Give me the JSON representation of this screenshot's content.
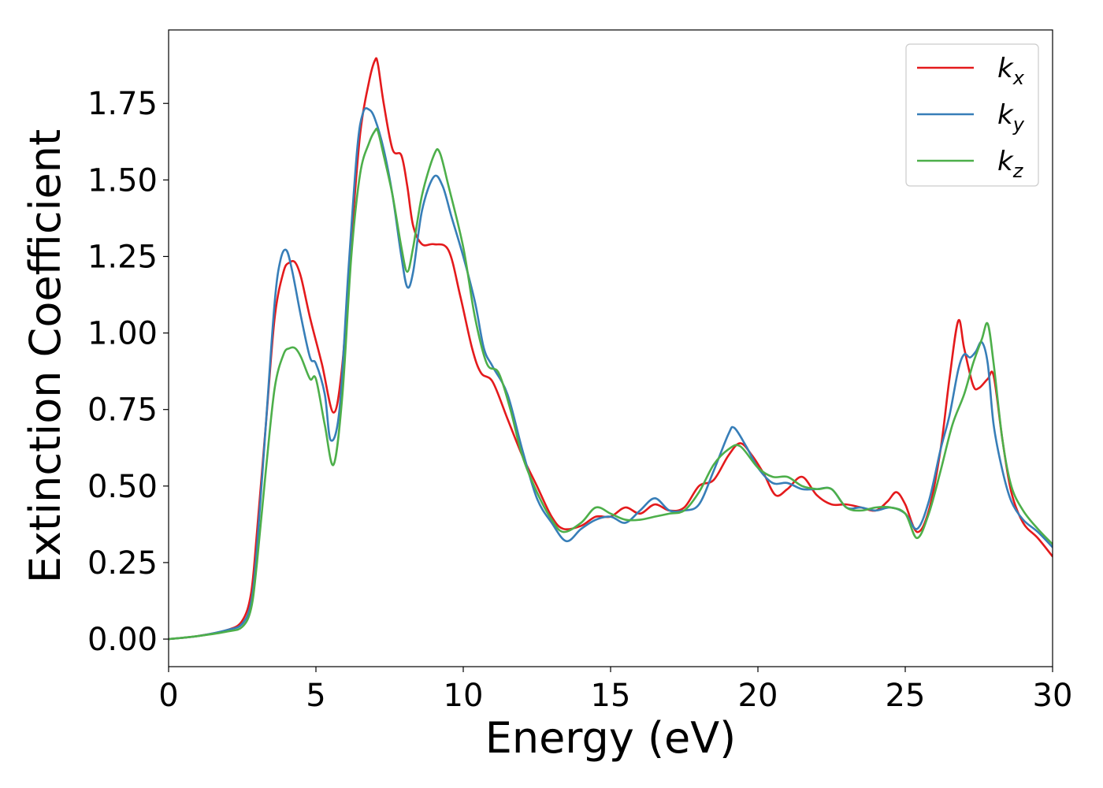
{
  "chart_data": {
    "type": "line",
    "xlabel": "Energy (eV)",
    "ylabel": "Extinction Coefficient",
    "xlim": [
      0,
      30
    ],
    "ylim": [
      -0.09,
      1.99
    ],
    "xticks": [
      0,
      5,
      10,
      15,
      20,
      25,
      30
    ],
    "yticks": [
      0.0,
      0.25,
      0.5,
      0.75,
      1.0,
      1.25,
      1.5,
      1.75
    ],
    "xtick_labels": [
      "0",
      "5",
      "10",
      "15",
      "20",
      "25",
      "30"
    ],
    "ytick_labels": [
      "0.00",
      "0.25",
      "0.50",
      "0.75",
      "1.00",
      "1.25",
      "1.50",
      "1.75"
    ],
    "grid": false,
    "legend_position": "top-right",
    "series": [
      {
        "name": "k_x",
        "label_base": "k",
        "label_sub": "x",
        "color": "#e41a1c",
        "x": [
          0,
          1,
          2,
          2.5,
          2.8,
          3.0,
          3.3,
          3.6,
          3.9,
          4.1,
          4.3,
          4.5,
          4.8,
          5.2,
          5.6,
          5.9,
          6.2,
          6.5,
          6.8,
          7.0,
          7.1,
          7.3,
          7.6,
          7.9,
          8.1,
          8.3,
          8.6,
          9.0,
          9.5,
          9.9,
          10.3,
          10.6,
          11.0,
          11.5,
          12.0,
          12.5,
          13.0,
          13.4,
          14.0,
          14.5,
          15.0,
          15.5,
          16.0,
          16.5,
          17.0,
          17.5,
          18.0,
          18.5,
          19.0,
          19.4,
          19.8,
          20.2,
          20.6,
          21.0,
          21.5,
          22.0,
          22.5,
          23.0,
          23.5,
          24.0,
          24.4,
          24.7,
          25.0,
          25.4,
          25.8,
          26.2,
          26.5,
          26.8,
          27.0,
          27.3,
          27.5,
          27.8,
          28.0,
          28.3,
          28.6,
          29.0,
          29.5,
          30.0
        ],
        "y": [
          0.0,
          0.01,
          0.03,
          0.06,
          0.15,
          0.35,
          0.7,
          1.05,
          1.2,
          1.23,
          1.23,
          1.18,
          1.05,
          0.9,
          0.74,
          0.9,
          1.3,
          1.65,
          1.82,
          1.89,
          1.88,
          1.75,
          1.6,
          1.58,
          1.48,
          1.35,
          1.29,
          1.29,
          1.27,
          1.12,
          0.95,
          0.87,
          0.84,
          0.72,
          0.6,
          0.5,
          0.4,
          0.36,
          0.37,
          0.4,
          0.4,
          0.43,
          0.41,
          0.44,
          0.42,
          0.43,
          0.5,
          0.52,
          0.6,
          0.64,
          0.6,
          0.54,
          0.47,
          0.49,
          0.53,
          0.47,
          0.44,
          0.44,
          0.43,
          0.42,
          0.45,
          0.48,
          0.44,
          0.35,
          0.42,
          0.62,
          0.85,
          1.04,
          0.95,
          0.83,
          0.82,
          0.85,
          0.86,
          0.65,
          0.48,
          0.38,
          0.33,
          0.27
        ]
      },
      {
        "name": "k_y",
        "label_base": "k",
        "label_sub": "y",
        "color": "#377eb8",
        "x": [
          0,
          1,
          2,
          2.5,
          2.8,
          3.0,
          3.3,
          3.6,
          3.8,
          4.0,
          4.2,
          4.5,
          4.8,
          5.0,
          5.3,
          5.5,
          5.8,
          6.1,
          6.4,
          6.6,
          6.8,
          7.0,
          7.3,
          7.6,
          7.9,
          8.1,
          8.3,
          8.6,
          9.0,
          9.3,
          9.6,
          10.0,
          10.4,
          10.7,
          11.0,
          11.5,
          12.0,
          12.5,
          13.0,
          13.5,
          14.0,
          14.5,
          15.0,
          15.5,
          16.0,
          16.5,
          17.0,
          17.5,
          18.0,
          18.5,
          19.0,
          19.2,
          19.6,
          20.0,
          20.5,
          21.0,
          21.5,
          22.0,
          22.5,
          23.0,
          23.5,
          24.0,
          24.5,
          25.0,
          25.4,
          25.8,
          26.2,
          26.5,
          26.8,
          27.0,
          27.2,
          27.4,
          27.6,
          27.8,
          28.0,
          28.3,
          28.6,
          29.0,
          29.5,
          30.0
        ],
        "y": [
          0.0,
          0.01,
          0.03,
          0.05,
          0.12,
          0.3,
          0.7,
          1.1,
          1.24,
          1.27,
          1.2,
          1.05,
          0.92,
          0.9,
          0.8,
          0.65,
          0.75,
          1.2,
          1.6,
          1.72,
          1.73,
          1.7,
          1.6,
          1.45,
          1.25,
          1.15,
          1.2,
          1.4,
          1.51,
          1.48,
          1.38,
          1.25,
          1.1,
          0.95,
          0.89,
          0.8,
          0.62,
          0.46,
          0.38,
          0.32,
          0.36,
          0.39,
          0.4,
          0.38,
          0.42,
          0.46,
          0.42,
          0.42,
          0.44,
          0.55,
          0.67,
          0.69,
          0.63,
          0.56,
          0.51,
          0.51,
          0.49,
          0.49,
          0.49,
          0.43,
          0.43,
          0.42,
          0.43,
          0.41,
          0.36,
          0.45,
          0.62,
          0.73,
          0.88,
          0.93,
          0.92,
          0.94,
          0.97,
          0.9,
          0.7,
          0.55,
          0.45,
          0.39,
          0.35,
          0.3
        ]
      },
      {
        "name": "k_z",
        "label_base": "k",
        "label_sub": "z",
        "color": "#4daf4a",
        "x": [
          0,
          1,
          2,
          2.5,
          2.8,
          3.0,
          3.3,
          3.6,
          3.9,
          4.1,
          4.3,
          4.5,
          4.8,
          5.0,
          5.3,
          5.6,
          5.9,
          6.2,
          6.5,
          6.8,
          7.0,
          7.1,
          7.3,
          7.6,
          7.9,
          8.1,
          8.3,
          8.6,
          9.0,
          9.2,
          9.5,
          10.0,
          10.4,
          10.8,
          11.2,
          11.6,
          12.0,
          12.5,
          13.0,
          13.4,
          14.0,
          14.5,
          15.0,
          15.5,
          16.0,
          16.5,
          17.0,
          17.5,
          18.0,
          18.5,
          19.0,
          19.4,
          20.0,
          20.5,
          21.0,
          21.5,
          22.0,
          22.5,
          23.0,
          23.5,
          24.0,
          24.5,
          25.0,
          25.4,
          25.8,
          26.2,
          26.6,
          27.0,
          27.3,
          27.6,
          27.8,
          28.0,
          28.3,
          28.6,
          29.0,
          29.5,
          30.0
        ],
        "y": [
          0.0,
          0.01,
          0.025,
          0.04,
          0.1,
          0.25,
          0.55,
          0.82,
          0.93,
          0.95,
          0.95,
          0.92,
          0.85,
          0.85,
          0.7,
          0.57,
          0.8,
          1.25,
          1.52,
          1.62,
          1.66,
          1.66,
          1.58,
          1.45,
          1.28,
          1.2,
          1.28,
          1.45,
          1.58,
          1.59,
          1.48,
          1.28,
          1.05,
          0.9,
          0.87,
          0.75,
          0.6,
          0.48,
          0.39,
          0.35,
          0.38,
          0.43,
          0.41,
          0.39,
          0.39,
          0.4,
          0.41,
          0.42,
          0.48,
          0.57,
          0.62,
          0.63,
          0.56,
          0.53,
          0.53,
          0.5,
          0.49,
          0.49,
          0.43,
          0.42,
          0.43,
          0.43,
          0.41,
          0.33,
          0.41,
          0.55,
          0.7,
          0.8,
          0.9,
          0.98,
          1.03,
          0.9,
          0.65,
          0.5,
          0.42,
          0.36,
          0.31
        ]
      }
    ]
  }
}
